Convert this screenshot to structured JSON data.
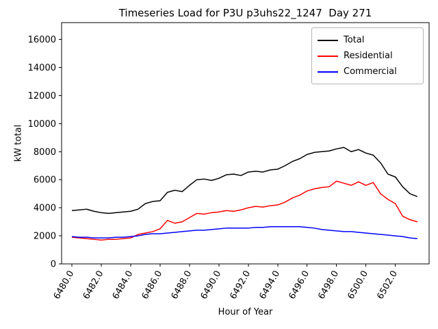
{
  "chart_data": {
    "type": "line",
    "title": "Timeseries Load for P3U p3uhs22_1247  Day 271",
    "xlabel": "Hour of Year",
    "ylabel": "kW total",
    "grid": false,
    "legend_position": "upper right",
    "xlim": [
      6479.3,
      6504.3
    ],
    "ylim": [
      0,
      17200
    ],
    "xticks": [
      6480,
      6482,
      6484,
      6486,
      6488,
      6490,
      6492,
      6494,
      6496,
      6498,
      6500,
      6502
    ],
    "xtick_labels": [
      "6480.0",
      "6482.0",
      "6484.0",
      "6486.0",
      "6488.0",
      "6490.0",
      "6492.0",
      "6494.0",
      "6496.0",
      "6498.0",
      "6500.0",
      "6502.0"
    ],
    "yticks": [
      0,
      2000,
      4000,
      6000,
      8000,
      10000,
      12000,
      14000,
      16000
    ],
    "ytick_labels": [
      "0",
      "2000",
      "4000",
      "6000",
      "8000",
      "10000",
      "12000",
      "14000",
      "16000"
    ],
    "x": [
      6480.0,
      6480.5,
      6481.0,
      6481.5,
      6482.0,
      6482.5,
      6483.0,
      6483.5,
      6484.0,
      6484.5,
      6485.0,
      6485.5,
      6486.0,
      6486.5,
      6487.0,
      6487.5,
      6488.0,
      6488.5,
      6489.0,
      6489.5,
      6490.0,
      6490.5,
      6491.0,
      6491.5,
      6492.0,
      6492.5,
      6493.0,
      6493.5,
      6494.0,
      6494.5,
      6495.0,
      6495.5,
      6496.0,
      6496.5,
      6497.0,
      6497.5,
      6498.0,
      6498.5,
      6499.0,
      6499.5,
      6500.0,
      6500.5,
      6501.0,
      6501.5,
      6502.0,
      6502.5,
      6503.0,
      6503.5
    ],
    "series": [
      {
        "name": "Total",
        "color": "#000000",
        "values": [
          3800,
          3850,
          3900,
          3750,
          3650,
          3600,
          3650,
          3700,
          3750,
          3900,
          4300,
          4450,
          4500,
          5100,
          5250,
          5150,
          5600,
          6000,
          6050,
          5950,
          6100,
          6350,
          6400,
          6300,
          6550,
          6600,
          6550,
          6700,
          6750,
          7000,
          7300,
          7500,
          7800,
          7950,
          8000,
          8050,
          8200,
          8300,
          8000,
          8150,
          7900,
          7750,
          7200,
          6400,
          6200,
          5500,
          5000,
          4800
        ]
      },
      {
        "name": "Residential",
        "color": "#ff0000",
        "values": [
          1900,
          1850,
          1800,
          1750,
          1700,
          1750,
          1750,
          1800,
          1850,
          2100,
          2200,
          2300,
          2500,
          3100,
          2900,
          3000,
          3300,
          3600,
          3550,
          3650,
          3700,
          3800,
          3750,
          3850,
          4000,
          4100,
          4050,
          4150,
          4200,
          4400,
          4700,
          4900,
          5200,
          5350,
          5450,
          5500,
          5900,
          5750,
          5600,
          5850,
          5600,
          5800,
          5000,
          4600,
          4300,
          3400,
          3150,
          3000
        ]
      },
      {
        "name": "Commercial",
        "color": "#0000ff",
        "values": [
          1950,
          1900,
          1900,
          1850,
          1850,
          1850,
          1900,
          1900,
          1950,
          2000,
          2100,
          2150,
          2150,
          2200,
          2250,
          2300,
          2350,
          2400,
          2400,
          2450,
          2500,
          2550,
          2550,
          2550,
          2550,
          2600,
          2600,
          2650,
          2650,
          2650,
          2650,
          2650,
          2600,
          2550,
          2450,
          2400,
          2350,
          2300,
          2300,
          2250,
          2200,
          2150,
          2100,
          2050,
          2000,
          1950,
          1850,
          1800
        ]
      }
    ]
  }
}
